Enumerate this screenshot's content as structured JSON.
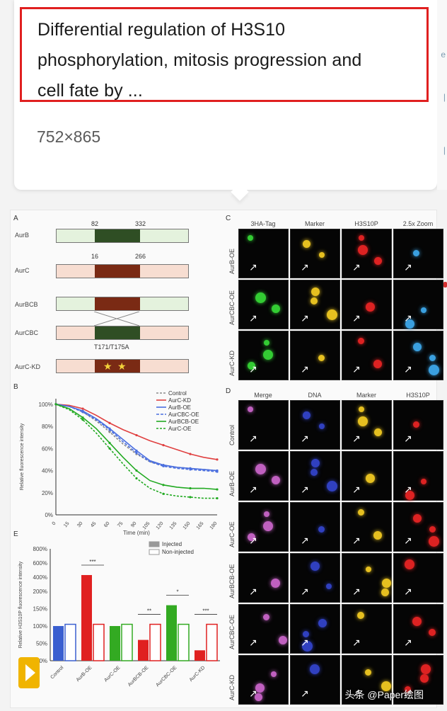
{
  "tooltip": {
    "title_line1": "Differential regulation of H3S10",
    "title_line2": "phosphorylation, mitosis progression and",
    "title_line3": "cell fate by ...",
    "dimensions": "752×865"
  },
  "figure": {
    "panel_a": {
      "label": "A",
      "rows": [
        {
          "name": "AurB",
          "start": "82",
          "end": "332"
        },
        {
          "name": "AurC",
          "start": "16",
          "end": "266"
        },
        {
          "name": "AurBCB",
          "start": "",
          "end": ""
        },
        {
          "name": "AurCBC",
          "start": "",
          "end": ""
        },
        {
          "name": "AurC-KD",
          "start": "",
          "end": ""
        }
      ],
      "mutation_label": "T171/T175A"
    },
    "panel_b": {
      "label": "B",
      "ylabel": "Relative fluorescence intensity",
      "xlabel": "Time (min)",
      "legend": [
        "Control",
        "AurC-KD",
        "AurB-OE",
        "AurCBC-OE",
        "AurBCB-OE",
        "AurC-OE"
      ],
      "colors": [
        "#8a8a8a",
        "#e04040",
        "#4a6ee0",
        "#4a6ee0",
        "#22aa22",
        "#22aa22"
      ]
    },
    "panel_c": {
      "label": "C",
      "columns": [
        "3HA-Tag",
        "Marker",
        "H3S10P",
        "2.5x Zoom"
      ],
      "rows": [
        "AurB-OE",
        "AurCBC-OE",
        "AurC-KD"
      ]
    },
    "panel_d": {
      "label": "D",
      "columns": [
        "Merge",
        "DNA",
        "Marker",
        "H3S10P"
      ],
      "rows": [
        "Control",
        "AurB-OE",
        "AurC-OE",
        "AurBCB-OE",
        "AurCBC-OE",
        "AurC-KD"
      ]
    },
    "panel_e": {
      "label": "E",
      "ylabel": "Relative H3S10P fluorescence intensity",
      "legend": [
        "Injected",
        "Non-injected"
      ],
      "categories": [
        "Control",
        "AurB-OE",
        "AurC-OE",
        "AurBCB-OE",
        "AurCBC-OE",
        "AurC-KD"
      ]
    },
    "watermark": "头条 @Paper绘图"
  },
  "chart_data": [
    {
      "type": "line",
      "title": "",
      "xlabel": "Time (min)",
      "ylabel": "Relative fluorescence intensity",
      "x": [
        0,
        15,
        30,
        45,
        60,
        75,
        90,
        105,
        120,
        135,
        150,
        165,
        180
      ],
      "xticks": [
        "0",
        "15",
        "30",
        "45",
        "60",
        "75",
        "90",
        "105",
        "120",
        "135",
        "150",
        "165",
        "180"
      ],
      "yticks": [
        "0%",
        "20%",
        "40%",
        "60%",
        "80%",
        "100%"
      ],
      "ylim": [
        0,
        105
      ],
      "legend_position": "top-right",
      "series": [
        {
          "name": "Control",
          "values": [
            100,
            98,
            93,
            85,
            75,
            64,
            55,
            48,
            45,
            43,
            42,
            41,
            40
          ]
        },
        {
          "name": "AurC-KD",
          "values": [
            100,
            99,
            96,
            90,
            83,
            77,
            72,
            67,
            63,
            59,
            55,
            52,
            50
          ]
        },
        {
          "name": "AurB-OE",
          "values": [
            100,
            98,
            94,
            87,
            78,
            68,
            58,
            49,
            45,
            43,
            42,
            41,
            40
          ]
        },
        {
          "name": "AurCBC-OE",
          "values": [
            100,
            98,
            93,
            86,
            77,
            66,
            56,
            48,
            44,
            42,
            41,
            40,
            39
          ]
        },
        {
          "name": "AurBCB-OE",
          "values": [
            100,
            96,
            88,
            78,
            65,
            52,
            40,
            31,
            27,
            25,
            24,
            24,
            23
          ]
        },
        {
          "name": "AurC-OE",
          "values": [
            100,
            95,
            86,
            74,
            60,
            46,
            33,
            24,
            19,
            17,
            16,
            15,
            15
          ]
        }
      ]
    },
    {
      "type": "bar",
      "title": "",
      "xlabel": "",
      "ylabel": "Relative H3S10P fluorescence intensity",
      "categories": [
        "Control",
        "AurB-OE",
        "AurC-OE",
        "AurBCB-OE",
        "AurCBC-OE",
        "AurC-KD"
      ],
      "yticks": [
        "0%",
        "50%",
        "100%",
        "150%",
        "200%",
        "400%",
        "600%",
        "800%"
      ],
      "ylim": [
        0,
        800
      ],
      "series": [
        {
          "name": "Injected",
          "values": [
            100,
            430,
            100,
            60,
            160,
            30
          ]
        },
        {
          "name": "Non-injected",
          "values": [
            105,
            105,
            105,
            105,
            105,
            105
          ]
        }
      ],
      "colors": [
        "#3a5fd0",
        "#e02020",
        "#33aa22",
        "#e02020",
        "#33aa22",
        "#e02020"
      ],
      "significance": [
        "",
        "***",
        "",
        "**",
        "*",
        "***"
      ]
    }
  ]
}
